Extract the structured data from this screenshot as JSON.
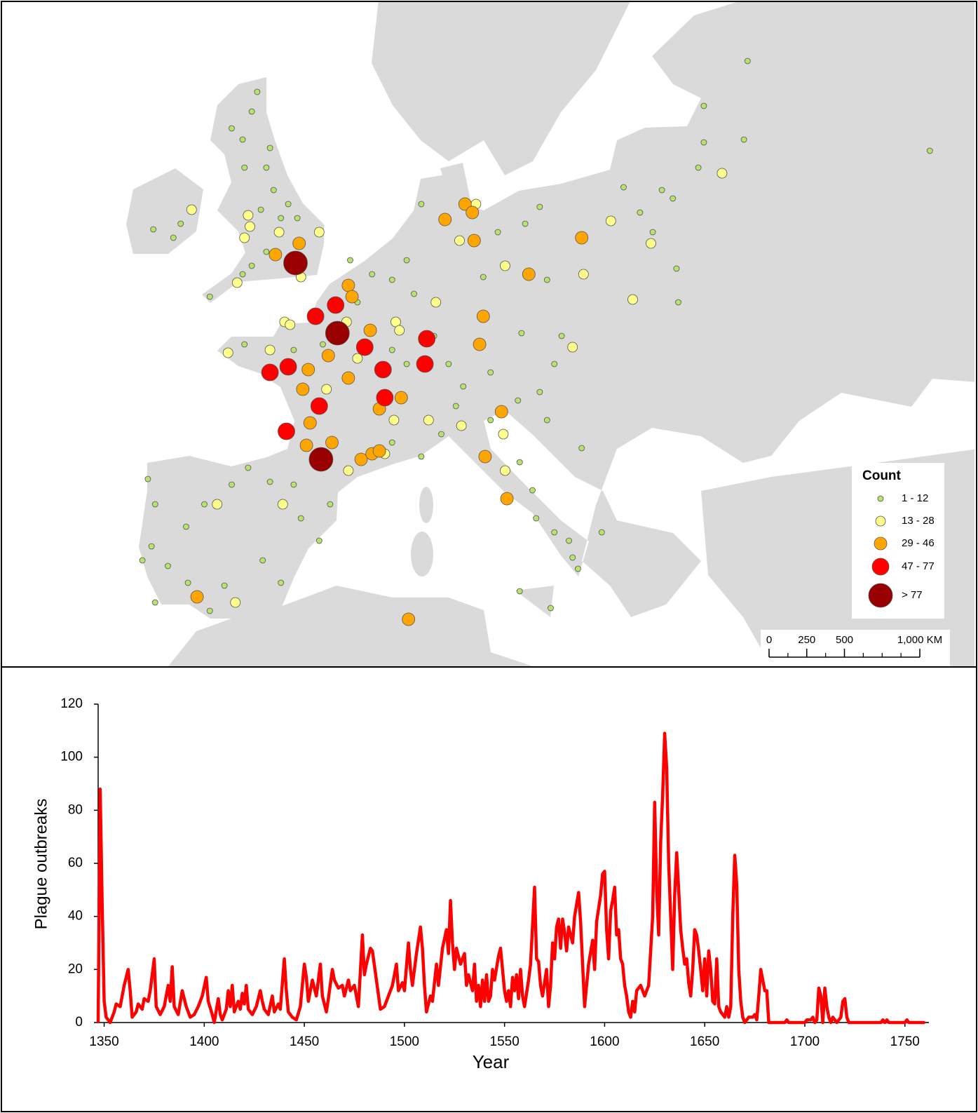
{
  "chart_data": [
    {
      "type": "map",
      "legend_title": "Count",
      "series": [
        {
          "name": "1 - 12",
          "color": "#b6e36c",
          "lon": [
            -2.0,
            -2.3,
            -3.4,
            -2.8,
            -1.3,
            -2.7,
            -1.5,
            -1.1,
            -0.3,
            -1.8,
            -0.7,
            0.2,
            -1.5,
            -2.3,
            -2.8,
            -4.6,
            -6.2,
            -7.7,
            -6.6,
            -8.0,
            -7.6,
            -7.8,
            -8.3,
            -6.9,
            -5.9,
            -4.9,
            -3.4,
            -2.5,
            -1.3,
            0.0,
            2.0,
            1.4,
            0.4,
            -1.7,
            -0.7,
            -3.8,
            -4.6,
            -5.8,
            -7.6,
            24.9,
            22.5,
            22.5,
            24.7,
            22.2,
            34.9,
            18.1,
            20.2,
            20.8,
            19.0,
            19.7,
            21.0,
            21.1,
            13.9,
            12.5,
            14.7,
            14.3,
            13.5,
            12.3,
            13.9,
            15.8,
            7.0,
            6.2,
            5.4,
            6.6,
            7.7,
            8.5,
            9.3,
            10.8,
            8.9,
            8.1,
            7.0,
            5.4,
            10.8,
            12.4,
            13.1,
            13.3,
            14.3,
            15.1,
            15.3,
            15.6,
            14.1,
            12.4,
            16.9,
            3.1,
            4.3,
            3.5,
            5.4,
            6.2,
            1.6,
            0.0,
            -2.7,
            10.4,
            11.2,
            12.7,
            13.5
          ],
          "lat": [
            57.4,
            56.7,
            56.1,
            55.7,
            55.4,
            54.7,
            54.7,
            53.9,
            53.4,
            53.2,
            52.9,
            52.9,
            51.7,
            51.2,
            50.9,
            50.1,
            52.7,
            52.5,
            52.2,
            43.6,
            42.7,
            41.2,
            40.7,
            40.5,
            41.9,
            42.7,
            43.4,
            44.0,
            43.5,
            43.4,
            42.7,
            41.4,
            42.2,
            40.7,
            39.9,
            39.8,
            38.9,
            39.9,
            39.2,
            58.5,
            56.9,
            55.6,
            55.7,
            54.7,
            55.3,
            54.0,
            53.9,
            53.6,
            53.1,
            52.4,
            51.1,
            49.9,
            50.7,
            48.8,
            48.7,
            47.7,
            46.7,
            46.4,
            45.7,
            44.7,
            53.4,
            51.4,
            50.7,
            50.2,
            48.7,
            47.7,
            46.9,
            47.4,
            46.2,
            45.2,
            44.4,
            44.9,
            45.7,
            44.2,
            43.2,
            42.2,
            41.7,
            41.4,
            40.8,
            40.4,
            39.0,
            39.6,
            41.7,
            51.4,
            50.9,
            49.9,
            48.2,
            47.7,
            48.4,
            48.2,
            48.4,
            50.8,
            52.4,
            52.7,
            53.3
          ]
        },
        {
          "name": "13 - 28",
          "color": "#ffff8c",
          "lon": [
            -5.6,
            -2.5,
            -2.4,
            -2.7,
            -0.8,
            1.4,
            -3.1,
            0.4,
            -0.5,
            -0.2,
            -1.3,
            -3.6,
            1.8,
            2.9,
            3.5,
            5.6,
            5.8,
            5.5,
            5.0,
            3.0,
            -0.6,
            -4.2,
            -3.2,
            9.1,
            11.6,
            7.8,
            9.2,
            10.0,
            17.4,
            19.6,
            15.9,
            18.6,
            23.5,
            15.3,
            11.5,
            11.6,
            7.4
          ],
          "lat": [
            53.2,
            53.0,
            52.6,
            52.2,
            52.4,
            52.4,
            50.6,
            50.8,
            49.2,
            49.1,
            48.2,
            48.1,
            46.8,
            49.2,
            47.9,
            49.2,
            48.9,
            45.7,
            44.5,
            43.9,
            42.7,
            42.7,
            39.2,
            52.1,
            51.2,
            49.9,
            45.5,
            53.4,
            52.8,
            52.0,
            50.9,
            50.0,
            54.5,
            48.3,
            45.2,
            43.9,
            45.7
          ]
        },
        {
          "name": "29 - 46",
          "color": "#ffa500",
          "lon": [
            3.0,
            3.2,
            4.2,
            1.9,
            0.8,
            0.5,
            3.0,
            5.9,
            4.7,
            0.9,
            0.7,
            2.1,
            3.7,
            4.3,
            4.7,
            10.4,
            10.2,
            11.4,
            10.5,
            11.7,
            8.3,
            9.4,
            9.8,
            9.9,
            12.9,
            15.8,
            -5.3,
            6.3,
            -1.0,
            0.3
          ],
          "lat": [
            50.5,
            50.1,
            48.9,
            48.0,
            47.5,
            46.8,
            47.2,
            46.5,
            46.1,
            45.6,
            44.8,
            44.9,
            44.3,
            44.5,
            44.6,
            49.4,
            48.4,
            46.0,
            44.4,
            42.9,
            52.85,
            53.4,
            53.1,
            52.1,
            50.9,
            52.2,
            39.4,
            38.6,
            51.6,
            52.0
          ]
        },
        {
          "name": "47 - 77",
          "color": "#ff0000",
          "lon": [
            2.3,
            1.2,
            3.9,
            7.3,
            7.2,
            4.9,
            5.0,
            1.4,
            -0.3,
            -1.3,
            -0.4
          ],
          "lat": [
            49.8,
            49.4,
            48.3,
            48.6,
            47.7,
            47.5,
            46.5,
            46.2,
            47.6,
            47.4,
            45.3
          ]
        },
        {
          "name": "> 77",
          "color": "#990000",
          "lon": [
            0.1,
            2.4,
            1.5
          ],
          "lat": [
            51.3,
            48.8,
            44.3
          ]
        }
      ],
      "scale_bar": {
        "ticks": [
          0,
          250,
          500,
          {
            "value": 1000,
            "label": "1,000 KM"
          }
        ]
      }
    },
    {
      "type": "line",
      "xlabel": "Year",
      "ylabel": "Plague outbreaks",
      "color": "#ff0000",
      "xlim": [
        1347,
        1762
      ],
      "ylim": [
        0,
        120
      ],
      "xticks": [
        1350,
        1400,
        1450,
        1500,
        1550,
        1600,
        1650,
        1700,
        1750
      ],
      "yticks": [
        0,
        20,
        40,
        60,
        80,
        100,
        120
      ],
      "x": [
        1347,
        1348,
        1349,
        1350,
        1351,
        1353,
        1355,
        1356,
        1358,
        1360,
        1362,
        1363,
        1364,
        1366,
        1367,
        1369,
        1370,
        1372,
        1373,
        1375,
        1376,
        1378,
        1380,
        1382,
        1383,
        1384,
        1385,
        1387,
        1389,
        1391,
        1393,
        1395,
        1397,
        1399,
        1401,
        1402,
        1404,
        1405,
        1407,
        1408,
        1409,
        1411,
        1412,
        1413,
        1414,
        1415,
        1417,
        1418,
        1419,
        1420,
        1421,
        1422,
        1424,
        1426,
        1428,
        1429,
        1430,
        1432,
        1434,
        1435,
        1437,
        1438,
        1440,
        1441,
        1442,
        1444,
        1446,
        1448,
        1450,
        1451,
        1452,
        1454,
        1456,
        1458,
        1459,
        1461,
        1462,
        1464,
        1465,
        1467,
        1469,
        1470,
        1472,
        1473,
        1475,
        1477,
        1479,
        1480,
        1481,
        1483,
        1484,
        1486,
        1488,
        1490,
        1492,
        1494,
        1496,
        1497,
        1499,
        1500,
        1502,
        1503,
        1504,
        1506,
        1508,
        1509,
        1510,
        1511,
        1513,
        1514,
        1516,
        1517,
        1519,
        1521,
        1522,
        1523,
        1524,
        1525,
        1526,
        1528,
        1530,
        1531,
        1532,
        1534,
        1535,
        1536,
        1537,
        1538,
        1539,
        1540,
        1541,
        1542,
        1543,
        1544,
        1545,
        1547,
        1548,
        1549,
        1550,
        1551,
        1552,
        1553,
        1554,
        1555,
        1556,
        1557,
        1558,
        1559,
        1560,
        1562,
        1563,
        1565,
        1566,
        1567,
        1568,
        1569,
        1571,
        1572,
        1573,
        1574,
        1575,
        1576,
        1577,
        1578,
        1579,
        1580,
        1581,
        1582,
        1584,
        1585,
        1587,
        1588,
        1589,
        1590,
        1592,
        1594,
        1595,
        1596,
        1598,
        1599,
        1600,
        1601,
        1602,
        1603,
        1604,
        1605,
        1606,
        1607,
        1608,
        1609,
        1610,
        1611,
        1612,
        1613,
        1614,
        1615,
        1616,
        1618,
        1620,
        1622,
        1624,
        1625,
        1626,
        1627,
        1628,
        1629,
        1630,
        1631,
        1632,
        1633,
        1634,
        1635,
        1636,
        1637,
        1638,
        1639,
        1640,
        1641,
        1642,
        1643,
        1644,
        1645,
        1646,
        1647,
        1648,
        1649,
        1650,
        1651,
        1652,
        1653,
        1654,
        1655,
        1656,
        1657,
        1658,
        1660,
        1661,
        1662,
        1663,
        1664,
        1665,
        1666,
        1667,
        1668,
        1669,
        1670,
        1672,
        1674,
        1675,
        1676,
        1677,
        1678,
        1679,
        1680,
        1681,
        1682,
        1684,
        1690,
        1691,
        1692,
        1700,
        1701,
        1703,
        1704,
        1705,
        1706,
        1707,
        1708,
        1709,
        1710,
        1711,
        1712,
        1713,
        1714,
        1716,
        1718,
        1719,
        1720,
        1721,
        1722,
        1738,
        1739,
        1740,
        1741,
        1742,
        1750,
        1751,
        1752,
        1760
      ],
      "values": [
        0,
        88,
        45,
        8,
        2,
        0,
        4,
        7,
        6,
        14,
        20,
        12,
        2,
        4,
        7,
        5,
        9,
        8,
        12,
        24,
        6,
        3,
        6,
        14,
        8,
        21,
        6,
        3,
        12,
        6,
        2,
        3,
        6,
        10,
        17,
        8,
        3,
        0,
        9,
        3,
        1,
        5,
        12,
        6,
        14,
        4,
        8,
        5,
        11,
        7,
        14,
        5,
        3,
        6,
        12,
        8,
        5,
        3,
        10,
        4,
        7,
        5,
        24,
        12,
        4,
        2,
        1,
        6,
        22,
        17,
        8,
        16,
        10,
        22,
        10,
        4,
        9,
        20,
        16,
        13,
        14,
        10,
        16,
        12,
        14,
        6,
        33,
        18,
        22,
        28,
        27,
        16,
        5,
        6,
        10,
        14,
        22,
        12,
        15,
        12,
        30,
        20,
        14,
        26,
        36,
        28,
        14,
        4,
        10,
        8,
        22,
        14,
        28,
        35,
        26,
        46,
        30,
        20,
        28,
        22,
        26,
        14,
        18,
        12,
        22,
        8,
        14,
        6,
        16,
        8,
        18,
        8,
        10,
        20,
        16,
        25,
        28,
        20,
        12,
        8,
        12,
        6,
        17,
        12,
        18,
        9,
        20,
        10,
        6,
        16,
        22,
        51,
        24,
        23,
        14,
        10,
        20,
        6,
        14,
        30,
        24,
        36,
        39,
        28,
        39,
        34,
        27,
        36,
        30,
        40,
        49,
        38,
        22,
        6,
        22,
        31,
        20,
        38,
        48,
        56,
        57,
        35,
        24,
        42,
        46,
        51,
        33,
        35,
        24,
        22,
        14,
        10,
        4,
        2,
        8,
        4,
        12,
        14,
        10,
        14,
        40,
        83,
        50,
        33,
        68,
        86,
        109,
        96,
        60,
        40,
        20,
        48,
        64,
        50,
        35,
        28,
        22,
        24,
        15,
        10,
        20,
        35,
        33,
        27,
        20,
        12,
        24,
        10,
        27,
        20,
        8,
        7,
        24,
        6,
        4,
        2,
        6,
        2,
        6,
        40,
        63,
        52,
        20,
        8,
        2,
        0,
        2,
        2,
        3,
        1,
        10,
        20,
        16,
        12,
        12,
        0,
        0,
        0,
        1,
        0,
        0,
        1,
        1,
        2,
        0,
        1,
        13,
        10,
        0,
        13,
        6,
        2,
        0,
        2,
        0,
        2,
        8,
        9,
        2,
        0,
        0,
        1,
        0,
        1,
        0,
        0,
        1,
        0,
        0
      ]
    }
  ]
}
